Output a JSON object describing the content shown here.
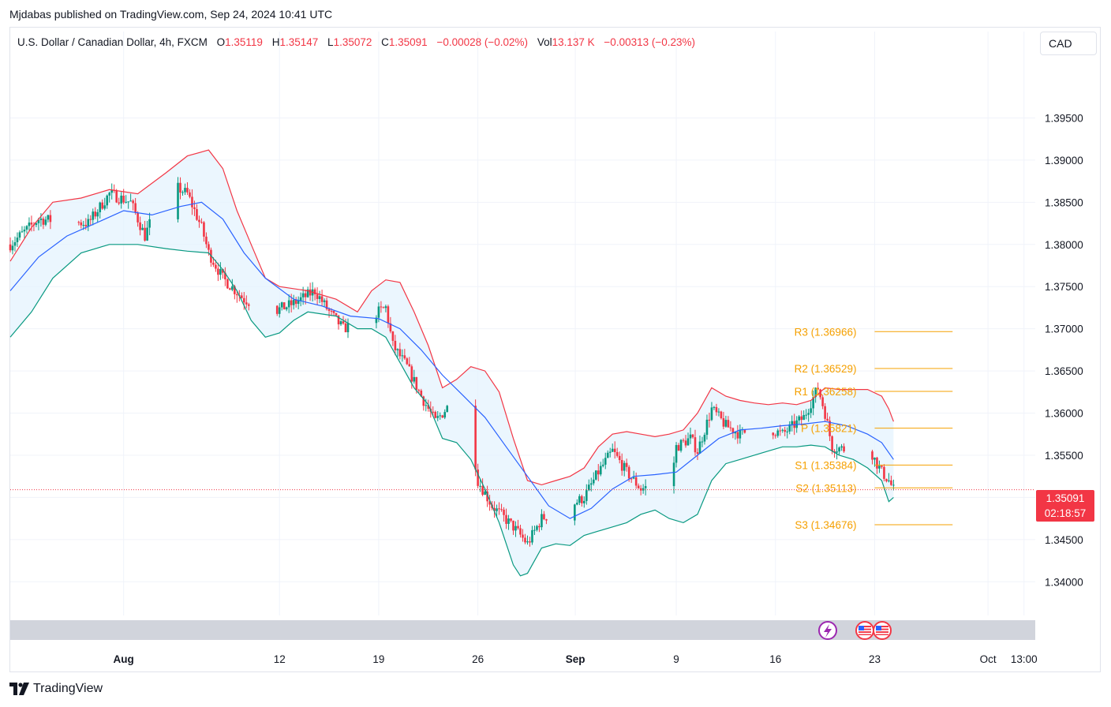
{
  "header": {
    "published": "Mjdabas published on TradingView.com, Sep 24, 2024 10:41 UTC"
  },
  "legend": {
    "symbol": "U.S. Dollar / Canadian Dollar, 4h, FXCM",
    "o_key": "O",
    "o": "1.35119",
    "h_key": "H",
    "h": "1.35147",
    "l_key": "L",
    "l": "1.35072",
    "c_key": "C",
    "c": "1.35091",
    "change": "−0.00028 (−0.02%)",
    "vol_key": "Vol",
    "vol": "13.137 K",
    "vol_change": "−0.00313 (−0.23%)"
  },
  "currency": "CAD",
  "price_label": {
    "price": "1.35091",
    "countdown": "02:18:57"
  },
  "footer": {
    "brand": "TradingView"
  },
  "colors": {
    "up": "#089981",
    "down": "#f23645",
    "upper_band": "#f23645",
    "lower_band": "#089981",
    "basis": "#2962ff",
    "band_fill": "#e3f2fd",
    "pivot": "#f5a000"
  },
  "icons": [
    "lightning-event-icon",
    "us-flag-icon",
    "ca-flag-icon"
  ],
  "chart_data": {
    "type": "candlestick",
    "y_axis": {
      "range": [
        1.336,
        1.4015
      ],
      "ticks": [
        "1.34000",
        "1.34500",
        "1.35000",
        "1.35500",
        "1.36000",
        "1.36500",
        "1.37000",
        "1.37500",
        "1.38000",
        "1.38500",
        "1.39000",
        "1.39500"
      ]
    },
    "x_axis": {
      "range": [
        "2024-07-24T00:00",
        "2024-10-04T08:00"
      ],
      "ticks": [
        {
          "label": "Aug",
          "t": "2024-08-01T00:00"
        },
        {
          "label": "12",
          "t": "2024-08-12T00:00"
        },
        {
          "label": "19",
          "t": "2024-08-19T00:00"
        },
        {
          "label": "26",
          "t": "2024-08-26T00:00"
        },
        {
          "label": "Sep",
          "t": "2024-09-01T21:00"
        },
        {
          "label": "9",
          "t": "2024-09-09T00:00"
        },
        {
          "label": "16",
          "t": "2024-09-16T00:00"
        },
        {
          "label": "23",
          "t": "2024-09-23T00:00"
        },
        {
          "label": "Oct",
          "t": "2024-10-01T00:00"
        },
        {
          "label": "13:00",
          "t": "2024-10-03T13:00"
        }
      ]
    },
    "close_anchors": [
      [
        "2024-07-24T00:00",
        1.38
      ],
      [
        "2024-07-26T00:00",
        1.383
      ],
      [
        "2024-07-29T12:00",
        1.3825
      ],
      [
        "2024-07-31T00:00",
        1.386
      ],
      [
        "2024-08-01T12:00",
        1.385
      ],
      [
        "2024-08-02T12:00",
        1.381
      ],
      [
        "2024-08-04T00:00",
        1.3875
      ],
      [
        "2024-08-05T12:00",
        1.386
      ],
      [
        "2024-08-06T12:00",
        1.382
      ],
      [
        "2024-08-07T00:00",
        1.379
      ],
      [
        "2024-08-08T00:00",
        1.376
      ],
      [
        "2024-08-09T12:00",
        1.3735
      ],
      [
        "2024-08-11T12:00",
        1.372
      ],
      [
        "2024-08-13T00:00",
        1.373
      ],
      [
        "2024-08-14T12:00",
        1.3745
      ],
      [
        "2024-08-15T12:00",
        1.372
      ],
      [
        "2024-08-16T12:00",
        1.37
      ],
      [
        "2024-08-18T12:00",
        1.3715
      ],
      [
        "2024-08-19T12:00",
        1.3725
      ],
      [
        "2024-08-20T00:00",
        1.368
      ],
      [
        "2024-08-21T00:00",
        1.3655
      ],
      [
        "2024-08-22T00:00",
        1.362
      ],
      [
        "2024-08-23T00:00",
        1.359
      ],
      [
        "2024-08-24T00:00",
        1.361
      ],
      [
        "2024-08-25T12:00",
        1.358
      ],
      [
        "2024-08-26T00:00",
        1.352
      ],
      [
        "2024-08-27T00:00",
        1.349
      ],
      [
        "2024-08-28T12:00",
        1.3465
      ],
      [
        "2024-08-29T12:00",
        1.3445
      ],
      [
        "2024-08-30T12:00",
        1.3475
      ],
      [
        "2024-09-01T12:00",
        1.349
      ],
      [
        "2024-09-02T12:00",
        1.35
      ],
      [
        "2024-09-03T12:00",
        1.353
      ],
      [
        "2024-09-04T12:00",
        1.3555
      ],
      [
        "2024-09-05T12:00",
        1.353
      ],
      [
        "2024-09-06T12:00",
        1.351
      ],
      [
        "2024-09-07T12:00",
        1.3515
      ],
      [
        "2024-09-08T12:00",
        1.3505
      ],
      [
        "2024-09-09T00:00",
        1.356
      ],
      [
        "2024-09-10T00:00",
        1.357
      ],
      [
        "2024-09-10T12:00",
        1.3555
      ],
      [
        "2024-09-11T12:00",
        1.3605
      ],
      [
        "2024-09-12T12:00",
        1.3585
      ],
      [
        "2024-09-13T12:00",
        1.3575
      ],
      [
        "2024-09-15T00:00",
        1.3585
      ],
      [
        "2024-09-16T12:00",
        1.3575
      ],
      [
        "2024-09-18T00:00",
        1.3595
      ],
      [
        "2024-09-19T00:00",
        1.363
      ],
      [
        "2024-09-19T12:00",
        1.36
      ],
      [
        "2024-09-20T00:00",
        1.356
      ],
      [
        "2024-09-21T12:00",
        1.3555
      ],
      [
        "2024-09-22T12:00",
        1.3565
      ],
      [
        "2024-09-23T00:00",
        1.3545
      ],
      [
        "2024-09-23T12:00",
        1.353
      ],
      [
        "2024-09-24T00:00",
        1.352
      ],
      [
        "2024-09-24T08:00",
        1.35091
      ]
    ],
    "bollinger": {
      "upper": [
        [
          "2024-07-24T00:00",
          1.378
        ],
        [
          "2024-07-25T12:00",
          1.382
        ],
        [
          "2024-07-27T00:00",
          1.385
        ],
        [
          "2024-07-29T00:00",
          1.3855
        ],
        [
          "2024-07-31T00:00",
          1.3865
        ],
        [
          "2024-08-02T00:00",
          1.386
        ],
        [
          "2024-08-04T00:00",
          1.3885
        ],
        [
          "2024-08-05T12:00",
          1.3905
        ],
        [
          "2024-08-07T00:00",
          1.3912
        ],
        [
          "2024-08-08T00:00",
          1.389
        ],
        [
          "2024-08-09T00:00",
          1.384
        ],
        [
          "2024-08-10T00:00",
          1.38
        ],
        [
          "2024-08-11T00:00",
          1.376
        ],
        [
          "2024-08-12T00:00",
          1.375
        ],
        [
          "2024-08-14T00:00",
          1.3745
        ],
        [
          "2024-08-16T00:00",
          1.3735
        ],
        [
          "2024-08-17T12:00",
          1.372
        ],
        [
          "2024-08-18T12:00",
          1.3745
        ],
        [
          "2024-08-19T12:00",
          1.3758
        ],
        [
          "2024-08-20T12:00",
          1.3755
        ],
        [
          "2024-08-21T12:00",
          1.372
        ],
        [
          "2024-08-22T12:00",
          1.368
        ],
        [
          "2024-08-23T12:00",
          1.363
        ],
        [
          "2024-08-24T12:00",
          1.364
        ],
        [
          "2024-08-25T12:00",
          1.3655
        ],
        [
          "2024-08-26T12:00",
          1.365
        ],
        [
          "2024-08-27T12:00",
          1.3625
        ],
        [
          "2024-08-28T12:00",
          1.357
        ],
        [
          "2024-08-29T12:00",
          1.352
        ],
        [
          "2024-08-30T12:00",
          1.3515
        ],
        [
          "2024-08-31T12:00",
          1.352
        ],
        [
          "2024-09-01T12:00",
          1.3525
        ],
        [
          "2024-09-02T12:00",
          1.3535
        ],
        [
          "2024-09-03T12:00",
          1.356
        ],
        [
          "2024-09-04T12:00",
          1.3575
        ],
        [
          "2024-09-05T12:00",
          1.3578
        ],
        [
          "2024-09-06T12:00",
          1.3575
        ],
        [
          "2024-09-07T12:00",
          1.3572
        ],
        [
          "2024-09-08T12:00",
          1.3575
        ],
        [
          "2024-09-09T12:00",
          1.358
        ],
        [
          "2024-09-10T12:00",
          1.36
        ],
        [
          "2024-09-11T12:00",
          1.363
        ],
        [
          "2024-09-12T12:00",
          1.362
        ],
        [
          "2024-09-13T12:00",
          1.3615
        ],
        [
          "2024-09-14T12:00",
          1.3612
        ],
        [
          "2024-09-15T12:00",
          1.361
        ],
        [
          "2024-09-16T12:00",
          1.3612
        ],
        [
          "2024-09-17T12:00",
          1.361
        ],
        [
          "2024-09-18T12:00",
          1.3615
        ],
        [
          "2024-09-19T12:00",
          1.363
        ],
        [
          "2024-09-20T12:00",
          1.3628
        ],
        [
          "2024-09-21T12:00",
          1.3628
        ],
        [
          "2024-09-22T12:00",
          1.3628
        ],
        [
          "2024-09-23T12:00",
          1.362
        ],
        [
          "2024-09-24T00:00",
          1.3605
        ],
        [
          "2024-09-24T08:00",
          1.359
        ]
      ],
      "basis": [
        [
          "2024-07-24T00:00",
          1.3745
        ],
        [
          "2024-07-26T00:00",
          1.3785
        ],
        [
          "2024-07-28T00:00",
          1.381
        ],
        [
          "2024-07-30T00:00",
          1.3825
        ],
        [
          "2024-08-01T00:00",
          1.384
        ],
        [
          "2024-08-03T00:00",
          1.3835
        ],
        [
          "2024-08-05T00:00",
          1.3845
        ],
        [
          "2024-08-06T12:00",
          1.385
        ],
        [
          "2024-08-08T00:00",
          1.383
        ],
        [
          "2024-08-09T12:00",
          1.379
        ],
        [
          "2024-08-11T00:00",
          1.376
        ],
        [
          "2024-08-13T00:00",
          1.3735
        ],
        [
          "2024-08-15T00:00",
          1.3727
        ],
        [
          "2024-08-17T00:00",
          1.3715
        ],
        [
          "2024-08-19T00:00",
          1.3712
        ],
        [
          "2024-08-20T12:00",
          1.37
        ],
        [
          "2024-08-22T00:00",
          1.3675
        ],
        [
          "2024-08-23T12:00",
          1.3645
        ],
        [
          "2024-08-25T00:00",
          1.362
        ],
        [
          "2024-08-26T12:00",
          1.3595
        ],
        [
          "2024-08-28T00:00",
          1.356
        ],
        [
          "2024-08-29T12:00",
          1.3525
        ],
        [
          "2024-08-31T00:00",
          1.349
        ],
        [
          "2024-09-01T12:00",
          1.3475
        ],
        [
          "2024-09-03T00:00",
          1.3487
        ],
        [
          "2024-09-04T12:00",
          1.351
        ],
        [
          "2024-09-06T00:00",
          1.3525
        ],
        [
          "2024-09-07T12:00",
          1.3527
        ],
        [
          "2024-09-09T00:00",
          1.353
        ],
        [
          "2024-09-10T12:00",
          1.355
        ],
        [
          "2024-09-12T00:00",
          1.357
        ],
        [
          "2024-09-13T12:00",
          1.358
        ],
        [
          "2024-09-15T00:00",
          1.3582
        ],
        [
          "2024-09-16T12:00",
          1.3585
        ],
        [
          "2024-09-18T00:00",
          1.3587
        ],
        [
          "2024-09-19T12:00",
          1.359
        ],
        [
          "2024-09-21T00:00",
          1.3585
        ],
        [
          "2024-09-22T12:00",
          1.3575
        ],
        [
          "2024-09-23T12:00",
          1.3565
        ],
        [
          "2024-09-24T08:00",
          1.3545
        ]
      ],
      "lower": [
        [
          "2024-07-24T00:00",
          1.369
        ],
        [
          "2024-07-25T12:00",
          1.372
        ],
        [
          "2024-07-27T00:00",
          1.376
        ],
        [
          "2024-07-29T00:00",
          1.379
        ],
        [
          "2024-07-31T00:00",
          1.38
        ],
        [
          "2024-08-02T00:00",
          1.38
        ],
        [
          "2024-08-04T00:00",
          1.3795
        ],
        [
          "2024-08-05T12:00",
          1.3792
        ],
        [
          "2024-08-07T00:00",
          1.379
        ],
        [
          "2024-08-08T00:00",
          1.377
        ],
        [
          "2024-08-09T00:00",
          1.3745
        ],
        [
          "2024-08-10T00:00",
          1.371
        ],
        [
          "2024-08-11T00:00",
          1.369
        ],
        [
          "2024-08-12T00:00",
          1.3695
        ],
        [
          "2024-08-13T00:00",
          1.371
        ],
        [
          "2024-08-14T00:00",
          1.372
        ],
        [
          "2024-08-16T00:00",
          1.3715
        ],
        [
          "2024-08-17T12:00",
          1.37
        ],
        [
          "2024-08-18T12:00",
          1.37
        ],
        [
          "2024-08-19T12:00",
          1.369
        ],
        [
          "2024-08-20T12:00",
          1.366
        ],
        [
          "2024-08-21T12:00",
          1.363
        ],
        [
          "2024-08-22T12:00",
          1.361
        ],
        [
          "2024-08-23T12:00",
          1.357
        ],
        [
          "2024-08-24T12:00",
          1.3565
        ],
        [
          "2024-08-25T12:00",
          1.3545
        ],
        [
          "2024-08-26T12:00",
          1.351
        ],
        [
          "2024-08-27T12:00",
          1.347
        ],
        [
          "2024-08-28T12:00",
          1.342
        ],
        [
          "2024-08-29T00:00",
          1.3407
        ],
        [
          "2024-08-29T12:00",
          1.341
        ],
        [
          "2024-08-30T12:00",
          1.344
        ],
        [
          "2024-08-31T12:00",
          1.3445
        ],
        [
          "2024-09-01T12:00",
          1.3443
        ],
        [
          "2024-09-02T12:00",
          1.3455
        ],
        [
          "2024-09-03T12:00",
          1.346
        ],
        [
          "2024-09-04T12:00",
          1.3465
        ],
        [
          "2024-09-05T12:00",
          1.347
        ],
        [
          "2024-09-06T12:00",
          1.348
        ],
        [
          "2024-09-07T12:00",
          1.3485
        ],
        [
          "2024-09-08T12:00",
          1.3475
        ],
        [
          "2024-09-09T12:00",
          1.347
        ],
        [
          "2024-09-10T12:00",
          1.348
        ],
        [
          "2024-09-11T12:00",
          1.352
        ],
        [
          "2024-09-12T12:00",
          1.354
        ],
        [
          "2024-09-13T12:00",
          1.3545
        ],
        [
          "2024-09-14T12:00",
          1.355
        ],
        [
          "2024-09-15T12:00",
          1.3555
        ],
        [
          "2024-09-16T12:00",
          1.356
        ],
        [
          "2024-09-17T12:00",
          1.356
        ],
        [
          "2024-09-18T12:00",
          1.3562
        ],
        [
          "2024-09-19T12:00",
          1.356
        ],
        [
          "2024-09-20T12:00",
          1.355
        ],
        [
          "2024-09-21T12:00",
          1.3545
        ],
        [
          "2024-09-22T12:00",
          1.3535
        ],
        [
          "2024-09-23T12:00",
          1.352
        ],
        [
          "2024-09-24T00:00",
          1.3495
        ],
        [
          "2024-09-24T08:00",
          1.35
        ]
      ]
    },
    "pivots": {
      "start": "2024-09-23T00:00",
      "end": "2024-09-28T12:00",
      "levels": [
        {
          "name": "R3",
          "value": 1.36966,
          "label": "R3 (1.36966)"
        },
        {
          "name": "R2",
          "value": 1.36529,
          "label": "R2 (1.36529)"
        },
        {
          "name": "R1",
          "value": 1.36258,
          "label": "R1 (1.36258)"
        },
        {
          "name": "P",
          "value": 1.35821,
          "label": "P (1.35821)"
        },
        {
          "name": "S1",
          "value": 1.35384,
          "label": "S1 (1.35384)"
        },
        {
          "name": "S2",
          "value": 1.35113,
          "label": "S2 (1.35113)"
        },
        {
          "name": "S3",
          "value": 1.34676,
          "label": "S3 (1.34676)"
        }
      ]
    },
    "last_price": 1.35091
  }
}
